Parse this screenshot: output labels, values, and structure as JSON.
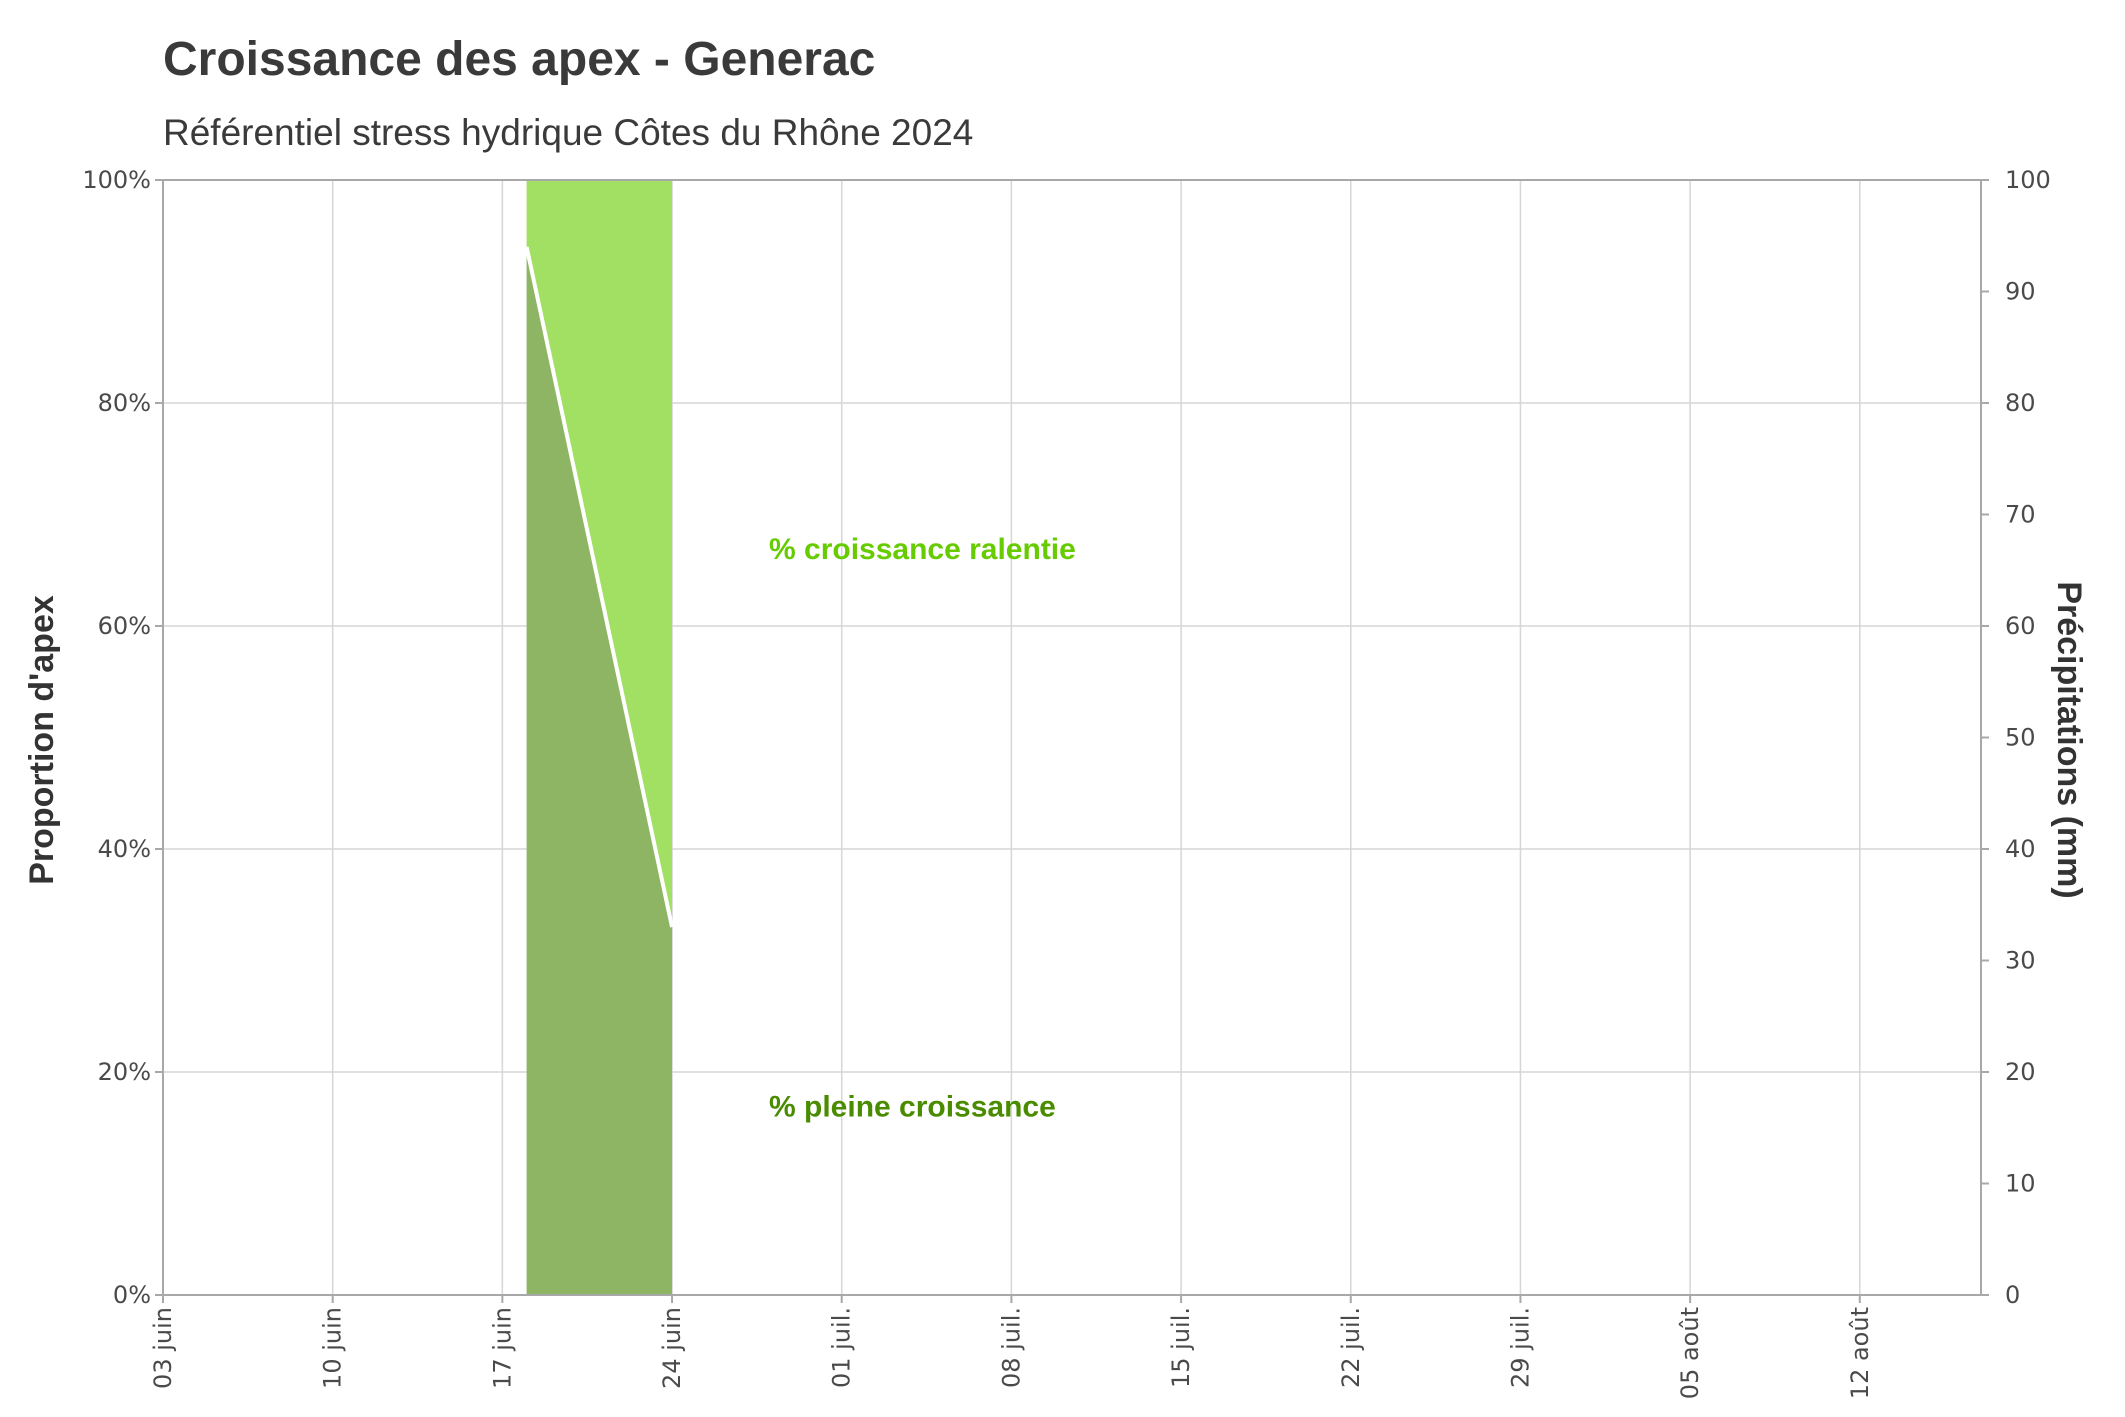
{
  "chart_data": {
    "type": "area",
    "title": "Croissance des apex - Generac",
    "subtitle": "Référentiel stress hydrique Côtes du Rhône 2024",
    "ylabel": "Proportion d'apex",
    "y2label": "Précipitations (mm)",
    "ylim": [
      0,
      100
    ],
    "y2lim": [
      0,
      100
    ],
    "yticks": [
      "0%",
      "20%",
      "40%",
      "60%",
      "80%",
      "100%"
    ],
    "y2ticks": [
      "0",
      "10",
      "20",
      "30",
      "40",
      "50",
      "60",
      "70",
      "80",
      "90",
      "100"
    ],
    "xlim": [
      "2024-06-03",
      "2024-08-17"
    ],
    "xticks": [
      {
        "date": "2024-06-03",
        "label": "03 juin"
      },
      {
        "date": "2024-06-10",
        "label": "10 juin"
      },
      {
        "date": "2024-06-17",
        "label": "17 juin"
      },
      {
        "date": "2024-06-24",
        "label": "24 juin"
      },
      {
        "date": "2024-07-01",
        "label": "01 juil."
      },
      {
        "date": "2024-07-08",
        "label": "08 juil."
      },
      {
        "date": "2024-07-15",
        "label": "15 juil."
      },
      {
        "date": "2024-07-22",
        "label": "22 juil."
      },
      {
        "date": "2024-07-29",
        "label": "29 juil."
      },
      {
        "date": "2024-08-05",
        "label": "05 août"
      },
      {
        "date": "2024-08-12",
        "label": "12 août"
      }
    ],
    "series": [
      {
        "name": "% pleine croissance",
        "color": "#8db564",
        "points": [
          {
            "date": "2024-06-18",
            "value": 94
          },
          {
            "date": "2024-06-24",
            "value": 33
          }
        ]
      },
      {
        "name": "% croissance ralentie",
        "color": "#a1e063",
        "points": [
          {
            "date": "2024-06-18",
            "value": 6
          },
          {
            "date": "2024-06-24",
            "value": 67
          }
        ]
      }
    ],
    "annotations": [
      {
        "text": "%  croissance ralentie",
        "date": "2024-06-28",
        "value": 66,
        "color": "#66cc00"
      },
      {
        "text": "% pleine croissance",
        "date": "2024-06-28",
        "value": 16,
        "color": "#4a8c00"
      }
    ],
    "grid": true,
    "legend": "none"
  }
}
